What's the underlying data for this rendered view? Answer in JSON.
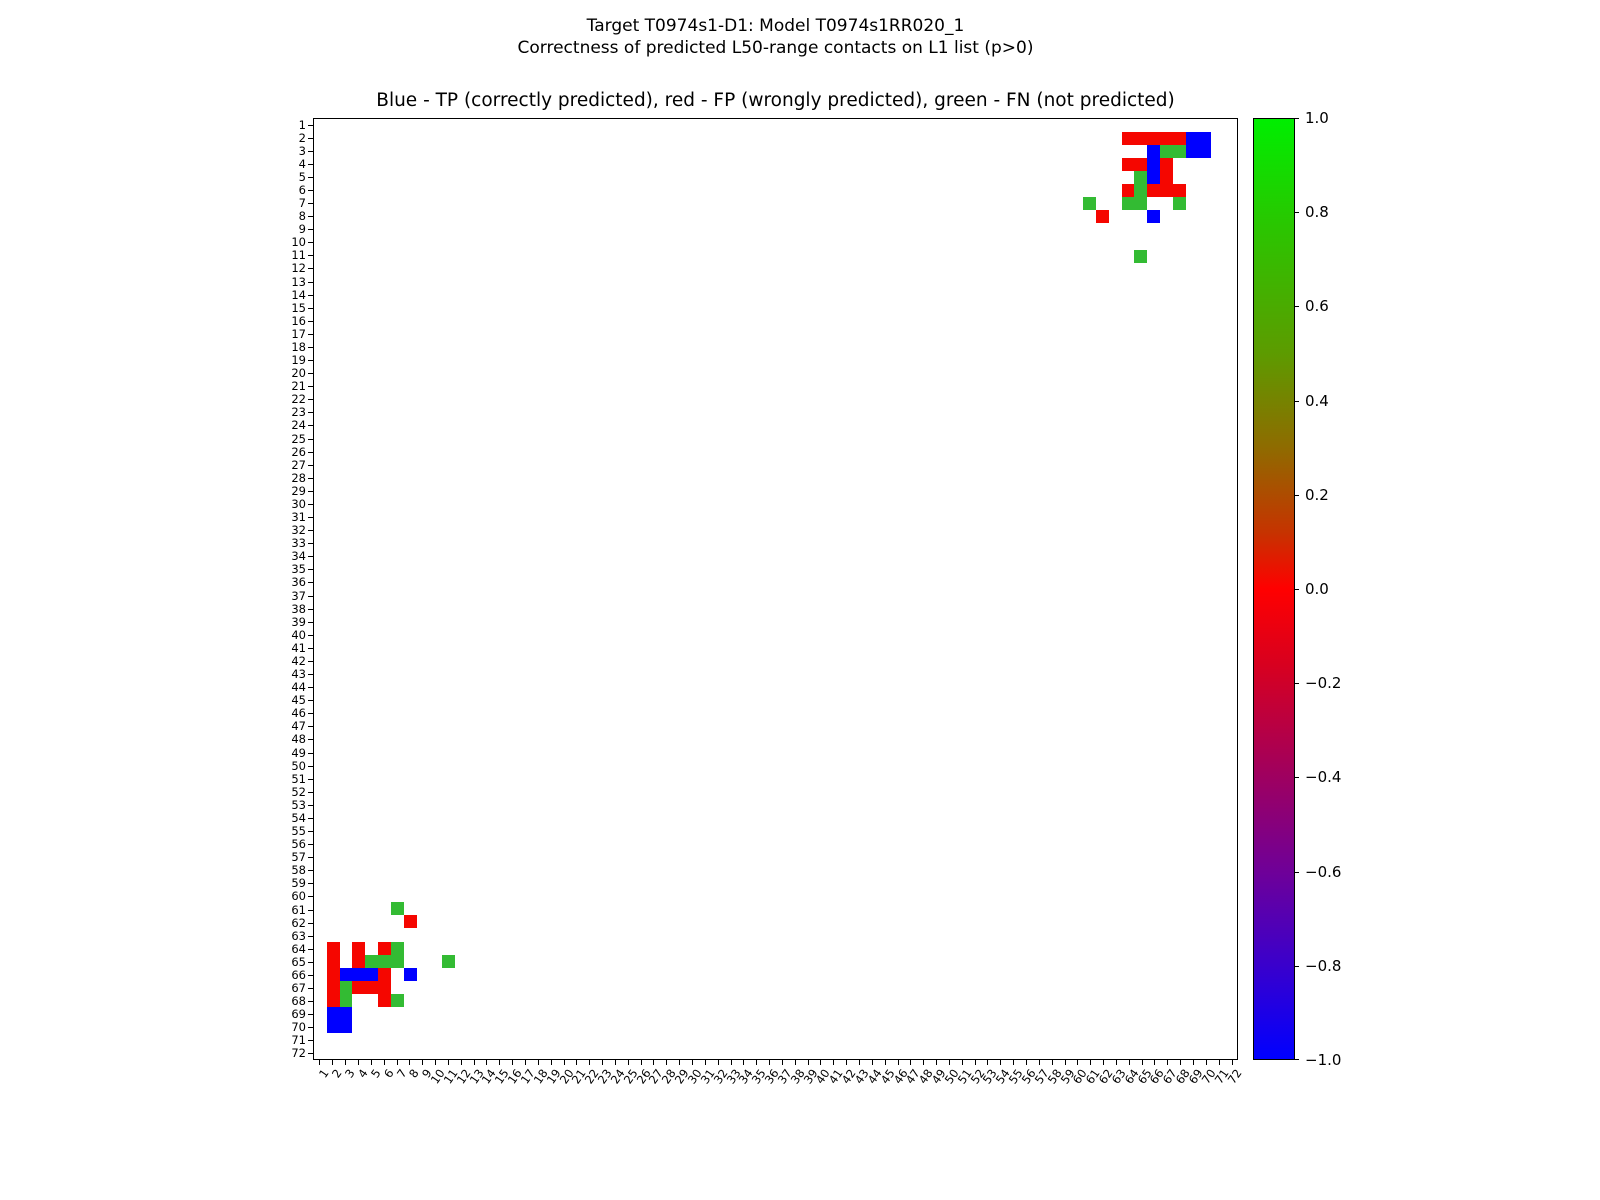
{
  "figure": {
    "title_line1": "Target T0974s1-D1: Model T0974s1RR020_1",
    "title_line2": "Correctness of predicted L50-range contacts on L1 list (p>0)",
    "axes_title": "Blue - TP (correctly predicted), red - FP (wrongly predicted), green - FN (not predicted)"
  },
  "chart_data": {
    "type": "heatmap",
    "title": "Blue - TP (correctly predicted), red - FP (wrongly predicted), green - FN (not predicted)",
    "x_axis": {
      "min": 1,
      "max": 72
    },
    "y_axis": {
      "min": 1,
      "max": 72,
      "direction": "top-to-bottom"
    },
    "grid": false,
    "symmetric": true,
    "legend": [
      {
        "type": "TP",
        "color_name": "blue",
        "meaning": "correctly predicted"
      },
      {
        "type": "FP",
        "color_name": "red",
        "meaning": "wrongly predicted"
      },
      {
        "type": "FN",
        "color_name": "green",
        "meaning": "not predicted"
      }
    ],
    "cell_colors": {
      "TP": "#0000ff",
      "FP": "#f50600",
      "FN": "#33bb33"
    },
    "contacts": [
      {
        "i": 2,
        "j": 64,
        "t": "FP"
      },
      {
        "i": 2,
        "j": 65,
        "t": "FP"
      },
      {
        "i": 2,
        "j": 66,
        "t": "FP"
      },
      {
        "i": 2,
        "j": 67,
        "t": "FP"
      },
      {
        "i": 2,
        "j": 68,
        "t": "FP"
      },
      {
        "i": 2,
        "j": 69,
        "t": "TP"
      },
      {
        "i": 2,
        "j": 70,
        "t": "TP"
      },
      {
        "i": 3,
        "j": 66,
        "t": "TP"
      },
      {
        "i": 3,
        "j": 67,
        "t": "FN"
      },
      {
        "i": 3,
        "j": 68,
        "t": "FN"
      },
      {
        "i": 3,
        "j": 69,
        "t": "TP"
      },
      {
        "i": 3,
        "j": 70,
        "t": "TP"
      },
      {
        "i": 4,
        "j": 64,
        "t": "FP"
      },
      {
        "i": 4,
        "j": 65,
        "t": "FP"
      },
      {
        "i": 4,
        "j": 66,
        "t": "TP"
      },
      {
        "i": 4,
        "j": 67,
        "t": "FP"
      },
      {
        "i": 5,
        "j": 65,
        "t": "FN"
      },
      {
        "i": 5,
        "j": 66,
        "t": "TP"
      },
      {
        "i": 5,
        "j": 67,
        "t": "FP"
      },
      {
        "i": 6,
        "j": 64,
        "t": "FP"
      },
      {
        "i": 6,
        "j": 65,
        "t": "FN"
      },
      {
        "i": 6,
        "j": 66,
        "t": "FP"
      },
      {
        "i": 6,
        "j": 67,
        "t": "FP"
      },
      {
        "i": 6,
        "j": 68,
        "t": "FP"
      },
      {
        "i": 7,
        "j": 61,
        "t": "FN"
      },
      {
        "i": 7,
        "j": 64,
        "t": "FN"
      },
      {
        "i": 7,
        "j": 65,
        "t": "FN"
      },
      {
        "i": 7,
        "j": 68,
        "t": "FN"
      },
      {
        "i": 8,
        "j": 62,
        "t": "FP"
      },
      {
        "i": 8,
        "j": 66,
        "t": "TP"
      },
      {
        "i": 11,
        "j": 65,
        "t": "FN"
      }
    ],
    "colorbar": {
      "min": -1.0,
      "max": 1.0,
      "tick_labels": [
        "1.0",
        "0.8",
        "0.6",
        "0.4",
        "0.2",
        "0.0",
        "−0.2",
        "−0.4",
        "−0.6",
        "−0.8",
        "−1.0"
      ],
      "gradient_stops": [
        {
          "pos": 0.0,
          "color": "#00ee00"
        },
        {
          "pos": 0.12,
          "color": "#2cc400"
        },
        {
          "pos": 0.25,
          "color": "#5d9b00"
        },
        {
          "pos": 0.35,
          "color": "#8f6b00"
        },
        {
          "pos": 0.44,
          "color": "#c63300"
        },
        {
          "pos": 0.5,
          "color": "#ff0000"
        },
        {
          "pos": 0.58,
          "color": "#d8001f"
        },
        {
          "pos": 0.68,
          "color": "#a80055"
        },
        {
          "pos": 0.8,
          "color": "#6f0098"
        },
        {
          "pos": 0.9,
          "color": "#3a00cc"
        },
        {
          "pos": 1.0,
          "color": "#0000ff"
        }
      ]
    }
  }
}
